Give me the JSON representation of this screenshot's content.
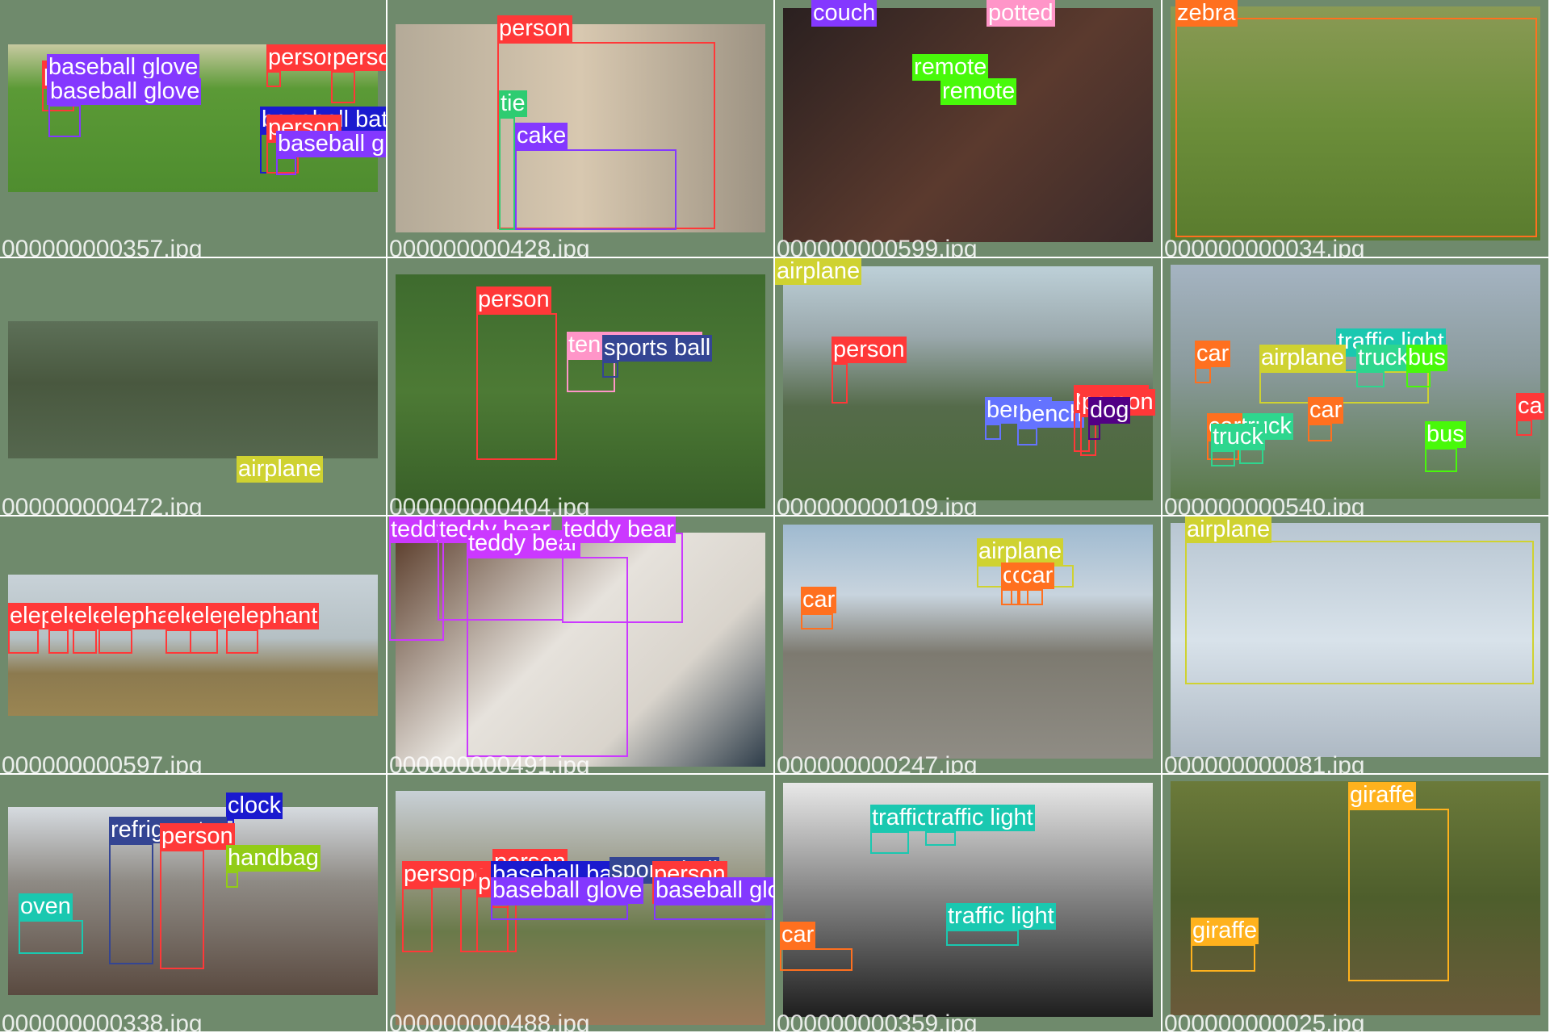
{
  "tiles": [
    {
      "filename": "000000000357.jpg",
      "labels": [
        "person",
        "baseball glove",
        "person",
        "person",
        "baseball glove",
        "baseball bat",
        "person",
        "baseball glove"
      ]
    },
    {
      "filename": "000000000428.jpg",
      "labels": [
        "person",
        "tie",
        "cake"
      ]
    },
    {
      "filename": "000000000599.jpg",
      "labels": [
        "couch",
        "potted",
        "remote",
        "remote"
      ]
    },
    {
      "filename": "000000000034.jpg",
      "labels": [
        "zebra"
      ]
    },
    {
      "filename": "000000000472.jpg",
      "labels": [
        "airplane"
      ]
    },
    {
      "filename": "000000000404.jpg",
      "labels": [
        "person",
        "tennis racket",
        "sports ball"
      ]
    },
    {
      "filename": "000000000109.jpg",
      "labels": [
        "person",
        "bench",
        "bench",
        "person",
        "person",
        "dog",
        "airplane"
      ]
    },
    {
      "filename": "000000000540.jpg",
      "labels": [
        "traffic light",
        "car",
        "airplane",
        "truck",
        "bus",
        "car",
        "truck",
        "car",
        "truck",
        "bus",
        "ca"
      ]
    },
    {
      "filename": "000000000597.jpg",
      "labels": [
        "elephant",
        "elephant",
        "elephant",
        "elephant",
        "elephant",
        "elephant",
        "elephant"
      ]
    },
    {
      "filename": "000000000491.jpg",
      "labels": [
        "teddy bear",
        "teddy bear",
        "teddy bear",
        "teddy bear"
      ]
    },
    {
      "filename": "000000000247.jpg",
      "labels": [
        "airplane",
        "car",
        "car",
        "car",
        "car"
      ]
    },
    {
      "filename": "000000000081.jpg",
      "labels": [
        "airplane"
      ]
    },
    {
      "filename": "000000000338.jpg",
      "labels": [
        "clock",
        "refrigerator",
        "person",
        "handbag",
        "oven"
      ]
    },
    {
      "filename": "000000000488.jpg",
      "labels": [
        "person",
        "person",
        "person",
        "person",
        "baseball bat",
        "sports ball",
        "baseball glove",
        "person",
        "baseball glove"
      ]
    },
    {
      "filename": "000000000359.jpg",
      "labels": [
        "traffic light",
        "traffic light",
        "traffic light",
        "car"
      ]
    },
    {
      "filename": "000000000025.jpg",
      "labels": [
        "giraffe",
        "giraffe"
      ]
    }
  ],
  "colors": {
    "tile_bg": "#6f8a6c",
    "person": "#ff3838",
    "baseball glove": "#8438ff",
    "baseball bat": "#1a1acf",
    "tie": "#2ecc71",
    "cake": "#8438ff",
    "couch": "#8438ff",
    "potted": "#ff95c8",
    "remote": "#48f90a",
    "zebra": "#ff701f",
    "airplane": "#cfd231",
    "tennis racket": "#ff95c8",
    "sports ball": "#344593",
    "bench": "#6473ff",
    "dog": "#520085",
    "traffic light": "#1ac8b0",
    "car": "#ff701f",
    "truck": "#2ed68e",
    "bus": "#48f90a",
    "elephant": "#ff3838",
    "teddy bear": "#cb38ff",
    "clock": "#1a1acf",
    "refrigerator": "#344593",
    "handbag": "#92cc17",
    "oven": "#1ac8b0",
    "giraffe": "#ffb21d"
  }
}
